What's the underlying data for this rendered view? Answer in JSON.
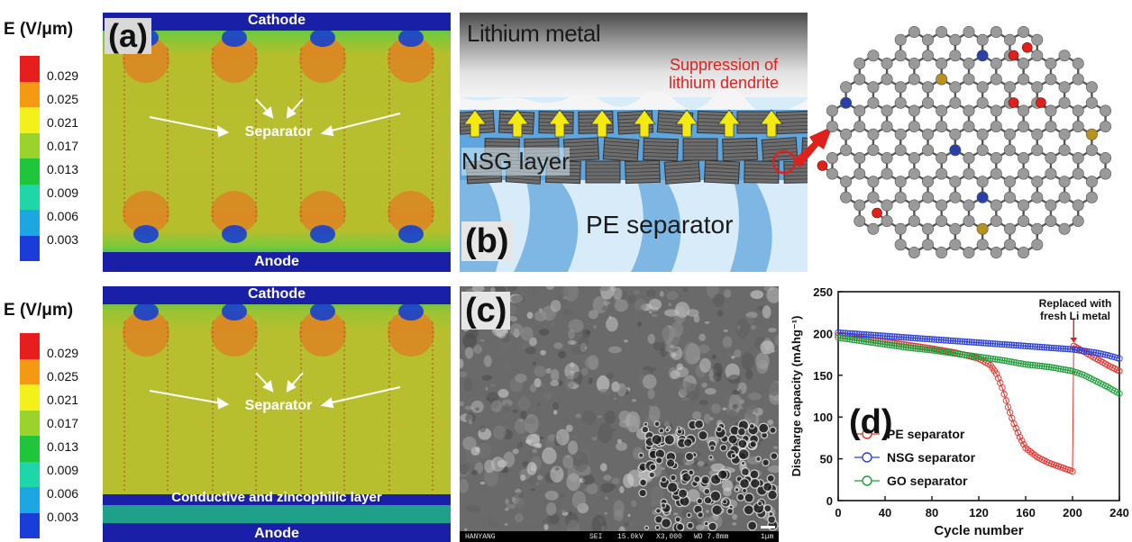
{
  "panel_a": {
    "letter": "(a)",
    "colorbar_title": "E (V/μm)",
    "colorbar_ticks": [
      "0.029",
      "0.025",
      "0.021",
      "0.017",
      "0.013",
      "0.009",
      "0.006",
      "0.003"
    ],
    "colorbar_colors": [
      "#e81d1d",
      "#f39a12",
      "#f3f01a",
      "#9ad32a",
      "#1fc53a",
      "#1fd6a8",
      "#1ea6e0",
      "#1a3cd8"
    ],
    "top_label": "Cathode",
    "bottom_label": "Anode",
    "center_label": "Separator"
  },
  "panel_lower_sim": {
    "colorbar_title": "E (V/μm)",
    "colorbar_ticks": [
      "0.029",
      "0.025",
      "0.021",
      "0.017",
      "0.013",
      "0.009",
      "0.006",
      "0.003"
    ],
    "top_label": "Cathode",
    "bottom_label": "Anode",
    "center_label": "Separator",
    "layer_label": "Conductive and zincophilic layer"
  },
  "panel_b": {
    "letter": "(b)",
    "top_label": "Lithium metal",
    "note_line1": "Suppression of",
    "note_line2": "lithium dendrite",
    "layer_label": "NSG layer",
    "separator_label": "PE separator"
  },
  "panel_c": {
    "letter": "(c)",
    "sem_info": [
      "HANYANG",
      "SEI",
      "15.0kV",
      "X3,000",
      "WD 7.8mm",
      "1μm"
    ]
  },
  "panel_d": {
    "letter": "(d)",
    "annotation_line1": "Replaced with",
    "annotation_line2": "fresh Li metal"
  },
  "chart_data": {
    "type": "scatter",
    "xlabel": "Cycle number",
    "ylabel": "Discharge capacity (mAhg⁻¹)",
    "xlim": [
      0,
      240
    ],
    "ylim": [
      0,
      250
    ],
    "x_ticks": [
      0,
      40,
      80,
      120,
      160,
      200,
      240
    ],
    "y_ticks": [
      0,
      50,
      100,
      150,
      200,
      250
    ],
    "legend_position": "bottom-left",
    "series": [
      {
        "name": "PE separator",
        "color": "#e0312b",
        "points": [
          [
            0,
            198
          ],
          [
            20,
            194
          ],
          [
            40,
            190
          ],
          [
            60,
            186
          ],
          [
            80,
            182
          ],
          [
            100,
            177
          ],
          [
            120,
            170
          ],
          [
            130,
            162
          ],
          [
            135,
            152
          ],
          [
            140,
            135
          ],
          [
            145,
            112
          ],
          [
            150,
            92
          ],
          [
            155,
            76
          ],
          [
            160,
            63
          ],
          [
            170,
            52
          ],
          [
            180,
            45
          ],
          [
            190,
            40
          ],
          [
            200,
            35
          ],
          [
            201,
            185
          ],
          [
            210,
            178
          ],
          [
            220,
            170
          ],
          [
            230,
            162
          ],
          [
            240,
            155
          ]
        ]
      },
      {
        "name": "NSG separator",
        "color": "#2c3fd9",
        "points": [
          [
            0,
            201
          ],
          [
            20,
            199
          ],
          [
            40,
            197
          ],
          [
            60,
            195
          ],
          [
            80,
            193
          ],
          [
            100,
            191
          ],
          [
            120,
            189
          ],
          [
            140,
            187
          ],
          [
            160,
            185
          ],
          [
            180,
            183
          ],
          [
            200,
            181
          ],
          [
            210,
            179
          ],
          [
            220,
            177
          ],
          [
            230,
            174
          ],
          [
            240,
            170
          ]
        ]
      },
      {
        "name": "GO separator",
        "color": "#1f9d3a",
        "points": [
          [
            0,
            195
          ],
          [
            20,
            191
          ],
          [
            40,
            187
          ],
          [
            60,
            183
          ],
          [
            80,
            180
          ],
          [
            100,
            176
          ],
          [
            120,
            172
          ],
          [
            140,
            168
          ],
          [
            160,
            163
          ],
          [
            180,
            160
          ],
          [
            200,
            155
          ],
          [
            210,
            150
          ],
          [
            220,
            143
          ],
          [
            230,
            136
          ],
          [
            240,
            128
          ]
        ]
      }
    ]
  }
}
